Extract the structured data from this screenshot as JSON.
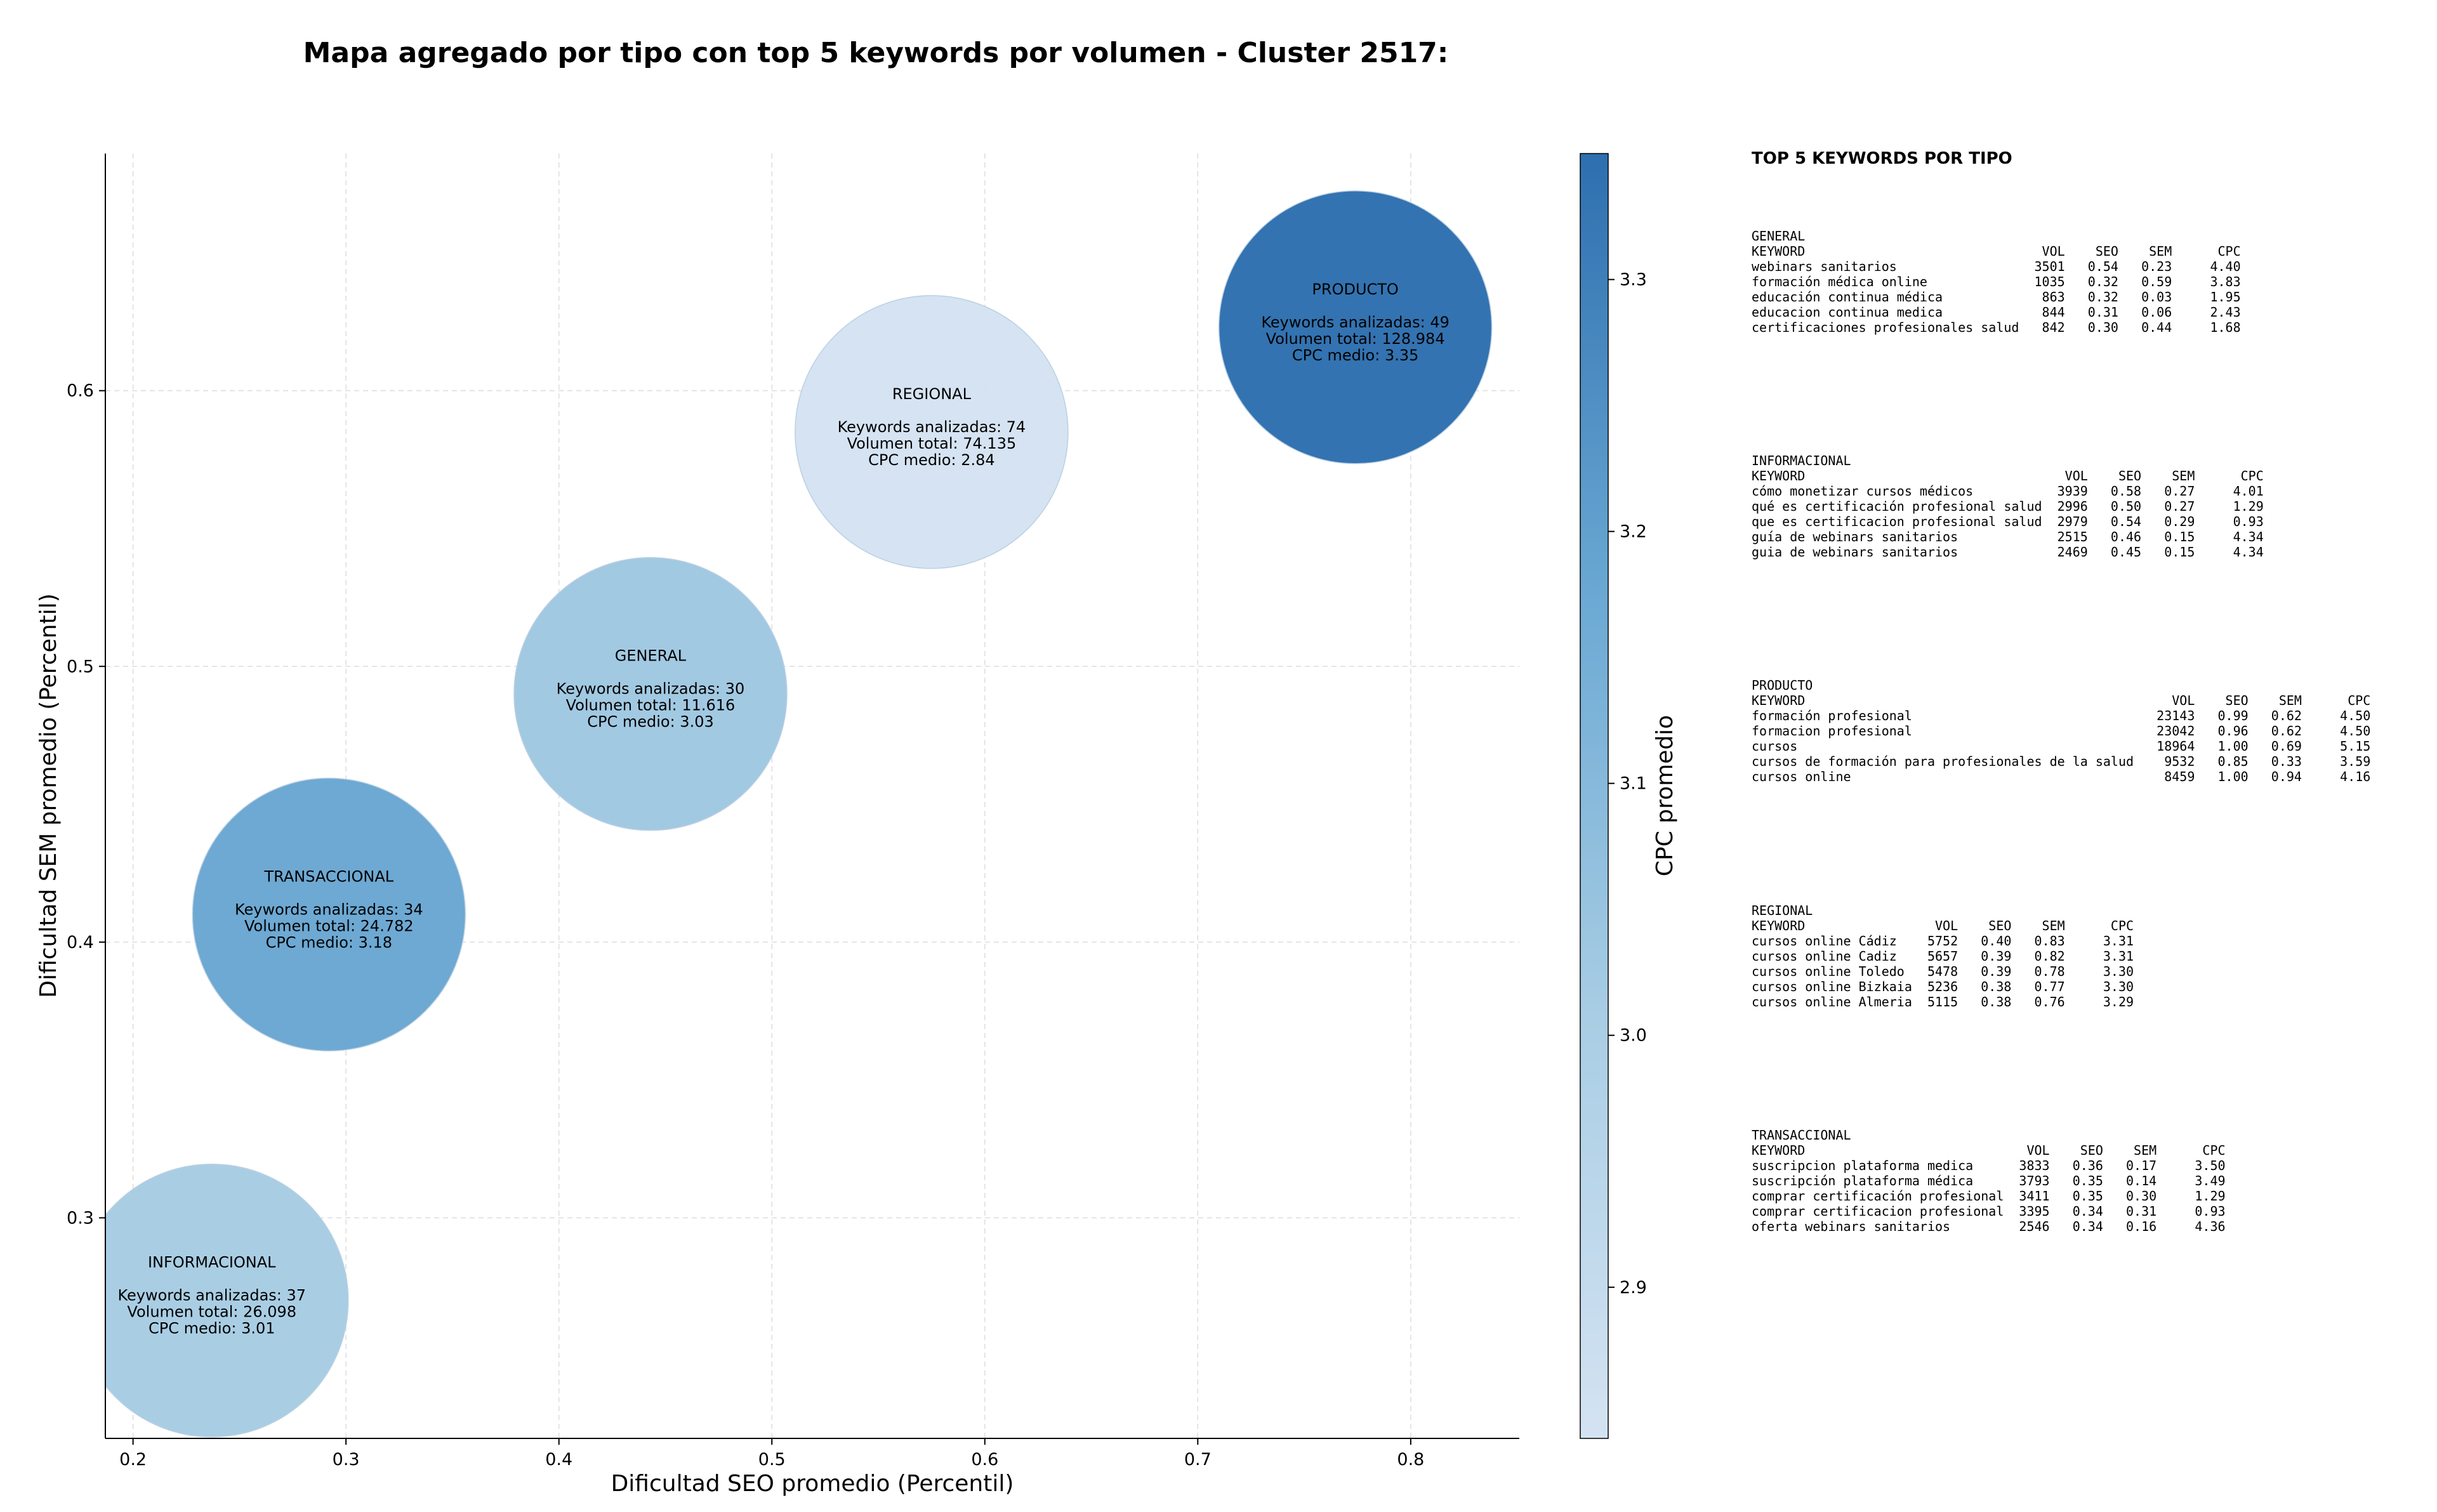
{
  "chart_data": {
    "type": "scatter",
    "title": "Mapa agregado por tipo con top 5 keywords por volumen - Cluster 2517:",
    "xlabel": "Dificultad SEO promedio (Percentil)",
    "ylabel": "Dificultad SEM promedio (Percentil)",
    "colorbar_label": "CPC promedio",
    "xlim": [
      0.187,
      0.851
    ],
    "ylim": [
      0.22,
      0.686
    ],
    "xticks": [
      0.2,
      0.3,
      0.4,
      0.5,
      0.6,
      0.7,
      0.8
    ],
    "yticks": [
      0.3,
      0.4,
      0.5,
      0.6
    ],
    "colorbar_range": [
      2.84,
      3.35
    ],
    "colorbar_ticks": [
      2.9,
      3.0,
      3.1,
      3.2,
      3.3
    ],
    "grid": true,
    "colormap": "Blues",
    "bubble_size_metric": "Keywords analizadas",
    "points": [
      {
        "type": "INFORMACIONAL",
        "x": 0.237,
        "y": 0.27,
        "keywords_line": "Keywords analizadas: 37",
        "volumen_line": "Volumen total: 26.098",
        "cpc_line": "CPC medio: 3.01",
        "keywords": 37,
        "cpc": 3.01
      },
      {
        "type": "TRANSACCIONAL",
        "x": 0.292,
        "y": 0.41,
        "keywords_line": "Keywords analizadas: 34",
        "volumen_line": "Volumen total: 24.782",
        "cpc_line": "CPC medio: 3.18",
        "keywords": 34,
        "cpc": 3.18
      },
      {
        "type": "GENERAL",
        "x": 0.443,
        "y": 0.49,
        "keywords_line": "Keywords analizadas: 30",
        "volumen_line": "Volumen total: 11.616",
        "cpc_line": "CPC medio: 3.03",
        "keywords": 30,
        "cpc": 3.03
      },
      {
        "type": "REGIONAL",
        "x": 0.575,
        "y": 0.585,
        "keywords_line": "Keywords analizadas: 74",
        "volumen_line": "Volumen total: 74.135",
        "cpc_line": "CPC medio: 2.84",
        "keywords": 74,
        "cpc": 2.84
      },
      {
        "type": "PRODUCTO",
        "x": 0.774,
        "y": 0.623,
        "keywords_line": "Keywords analizadas: 49",
        "volumen_line": "Volumen total: 128.984",
        "cpc_line": "CPC medio: 3.35",
        "keywords": 49,
        "cpc": 3.35
      }
    ]
  },
  "panel": {
    "title": "TOP 5 KEYWORDS POR TIPO",
    "sections": [
      {
        "name": "GENERAL",
        "lines": [
          "KEYWORD                               VOL    SEO    SEM      CPC",
          "webinars sanitarios                  3501   0.54   0.23     4.40",
          "formación médica online              1035   0.32   0.59     3.83",
          "educación continua médica             863   0.32   0.03     1.95",
          "educacion continua medica             844   0.31   0.06     2.43",
          "certificaciones profesionales salud   842   0.30   0.44     1.68"
        ]
      },
      {
        "name": "INFORMACIONAL",
        "lines": [
          "KEYWORD                                  VOL    SEO    SEM      CPC",
          "cómo monetizar cursos médicos           3939   0.58   0.27     4.01",
          "qué es certificación profesional salud  2996   0.50   0.27     1.29",
          "que es certificacion profesional salud  2979   0.54   0.29     0.93",
          "guía de webinars sanitarios             2515   0.46   0.15     4.34",
          "guia de webinars sanitarios             2469   0.45   0.15     4.34"
        ]
      },
      {
        "name": "PRODUCTO",
        "lines": [
          "KEYWORD                                                VOL    SEO    SEM      CPC",
          "formación profesional                                23143   0.99   0.62     4.50",
          "formacion profesional                                23042   0.96   0.62     4.50",
          "cursos                                               18964   1.00   0.69     5.15",
          "cursos de formación para profesionales de la salud    9532   0.85   0.33     3.59",
          "cursos online                                         8459   1.00   0.94     4.16"
        ]
      },
      {
        "name": "REGIONAL",
        "lines": [
          "KEYWORD                 VOL    SEO    SEM      CPC",
          "cursos online Cádiz    5752   0.40   0.83     3.31",
          "cursos online Cadiz    5657   0.39   0.82     3.31",
          "cursos online Toledo   5478   0.39   0.78     3.30",
          "cursos online Bizkaia  5236   0.38   0.77     3.30",
          "cursos online Almeria  5115   0.38   0.76     3.29"
        ]
      },
      {
        "name": "TRANSACCIONAL",
        "lines": [
          "KEYWORD                             VOL    SEO    SEM      CPC",
          "suscripcion plataforma medica      3833   0.36   0.17     3.50",
          "suscripción plataforma médica      3793   0.35   0.14     3.49",
          "comprar certificación profesional  3411   0.35   0.30     1.29",
          "comprar certificacion profesional  3395   0.34   0.31     0.93",
          "oferta webinars sanitarios         2546   0.34   0.16     4.36"
        ]
      }
    ]
  }
}
